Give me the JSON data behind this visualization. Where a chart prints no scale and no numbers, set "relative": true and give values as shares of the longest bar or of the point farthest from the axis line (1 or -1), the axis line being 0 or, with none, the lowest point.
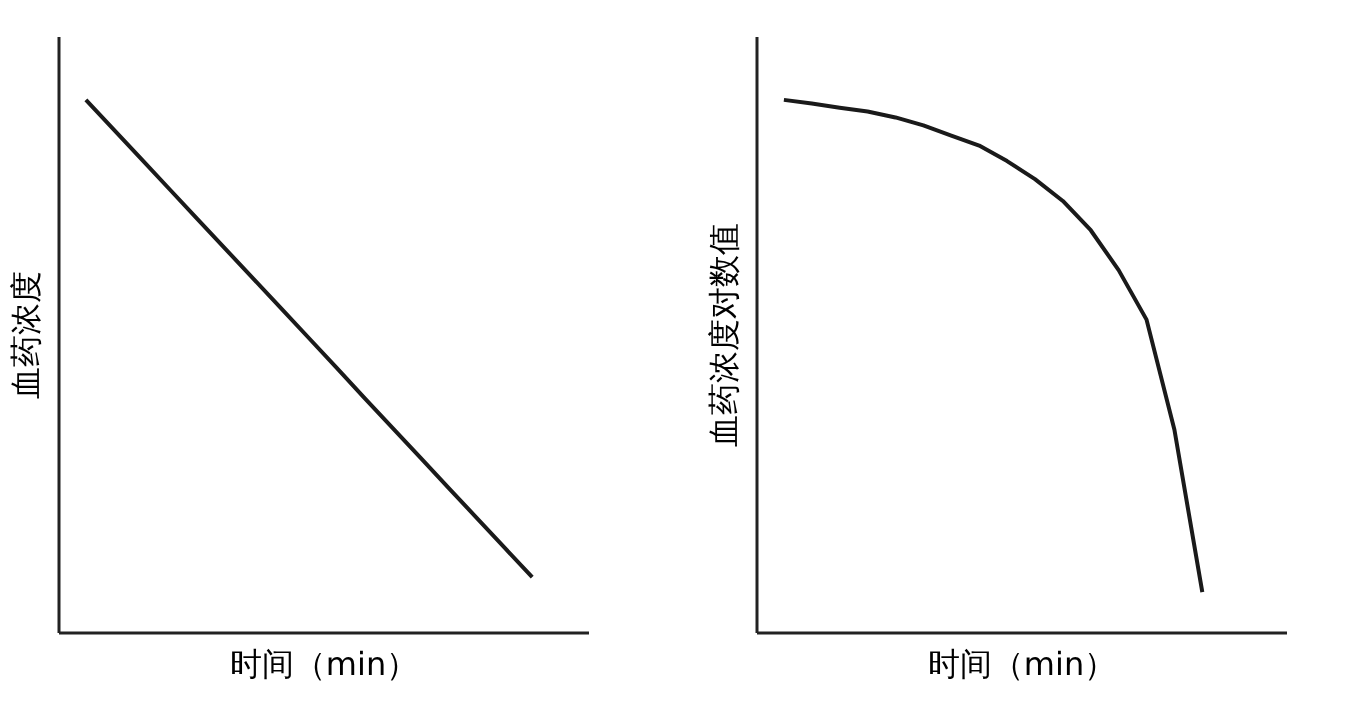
{
  "chart_data": [
    {
      "type": "line",
      "relative": true,
      "ylabel": "血药浓度",
      "xlabel": "时间（min）",
      "color": "#1a1a1a",
      "categories": [
        null,
        null,
        null,
        null,
        null,
        null,
        null,
        null,
        null,
        null,
        null,
        null,
        null,
        null,
        null,
        null,
        null,
        null,
        null,
        null
      ],
      "values": [
        null,
        1,
        0.944,
        0.888,
        0.832,
        0.776,
        0.72,
        0.664,
        0.608,
        0.552,
        0.496,
        0.439,
        0.383,
        0.327,
        0.271,
        0.215,
        0.159,
        0.103,
        null,
        null
      ]
    },
    {
      "type": "line",
      "relative": true,
      "ylabel": "血药浓度对数值",
      "xlabel": "时间（min）",
      "color": "#1a1a1a",
      "categories": [
        null,
        null,
        null,
        null,
        null,
        null,
        null,
        null,
        null,
        null,
        null,
        null,
        null,
        null,
        null,
        null,
        null,
        null,
        null,
        null
      ],
      "values": [
        null,
        1,
        0.993,
        0.985,
        0.978,
        0.967,
        0.952,
        0.933,
        0.914,
        0.885,
        0.851,
        0.81,
        0.755,
        0.68,
        0.587,
        0.38,
        0.075,
        null,
        null,
        null
      ]
    }
  ]
}
